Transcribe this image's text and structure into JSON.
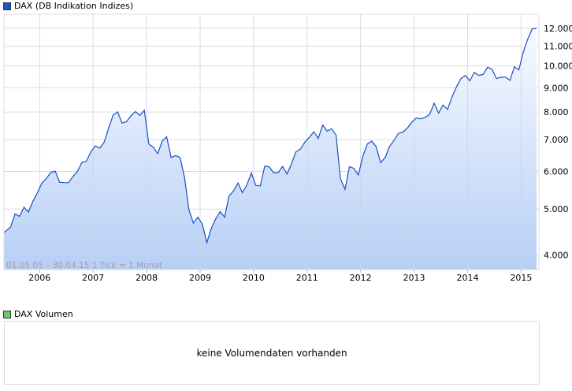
{
  "chart_data": {
    "type": "area",
    "title": "DAX (DB Indikation Indizes)",
    "series_color": "#1a4fc0",
    "legend_color": "#1a55c4",
    "y_scale": "log",
    "ylim": [
      3730,
      12850
    ],
    "y_ticks": [
      4000,
      5000,
      6000,
      7000,
      8000,
      9000,
      10000,
      11000,
      12000
    ],
    "y_tick_labels": [
      "4.000",
      "5.000",
      "6.000",
      "7.000",
      "8.000",
      "9.000",
      "10.000",
      "11.000",
      "12.000"
    ],
    "x_ticks": [
      "2006",
      "2007",
      "2008",
      "2009",
      "2010",
      "2011",
      "2012",
      "2013",
      "2014",
      "2015"
    ],
    "x_start": "2005-05",
    "x_end": "2015-04",
    "grid": true,
    "range_note": "01.05.05 – 30.04.15   1 Tick = 1 Monat",
    "values": [
      4460,
      4586,
      4886,
      4829,
      5044,
      4929,
      5193,
      5408,
      5674,
      5797,
      5970,
      6009,
      5692,
      5683,
      5682,
      5859,
      6004,
      6268,
      6309,
      6597,
      6789,
      6716,
      6917,
      7409,
      7883,
      8007,
      7584,
      7638,
      7862,
      8019,
      7871,
      8067,
      6851,
      6748,
      6535,
      6949,
      7097,
      6418,
      6479,
      6422,
      5831,
      4988,
      4670,
      4810,
      4650,
      4250,
      4550,
      4770,
      4941,
      4809,
      5332,
      5458,
      5675,
      5415,
      5625,
      5957,
      5608,
      5598,
      6154,
      6136,
      5964,
      5966,
      6148,
      5925,
      6229,
      6601,
      6688,
      6914,
      7077,
      7272,
      7041,
      7514,
      7294,
      7376,
      7159,
      5785,
      5502,
      6141,
      6089,
      5898,
      6458,
      6856,
      6947,
      6761,
      6264,
      6416,
      6772,
      6970,
      7216,
      7260,
      7406,
      7612,
      7776,
      7741,
      7795,
      7914,
      8349,
      7959,
      8276,
      8103,
      8594,
      9033,
      9405,
      9552,
      9306,
      9692,
      9556,
      9603,
      9943,
      9833,
      9407,
      9470,
      9474,
      9327,
      9963,
      9806,
      10694,
      11402,
      11966,
      12000
    ]
  },
  "volume": {
    "legend": "DAX Volumen",
    "legend_color": "#66cc66",
    "empty_message": "keine Volumendaten vorhanden"
  }
}
